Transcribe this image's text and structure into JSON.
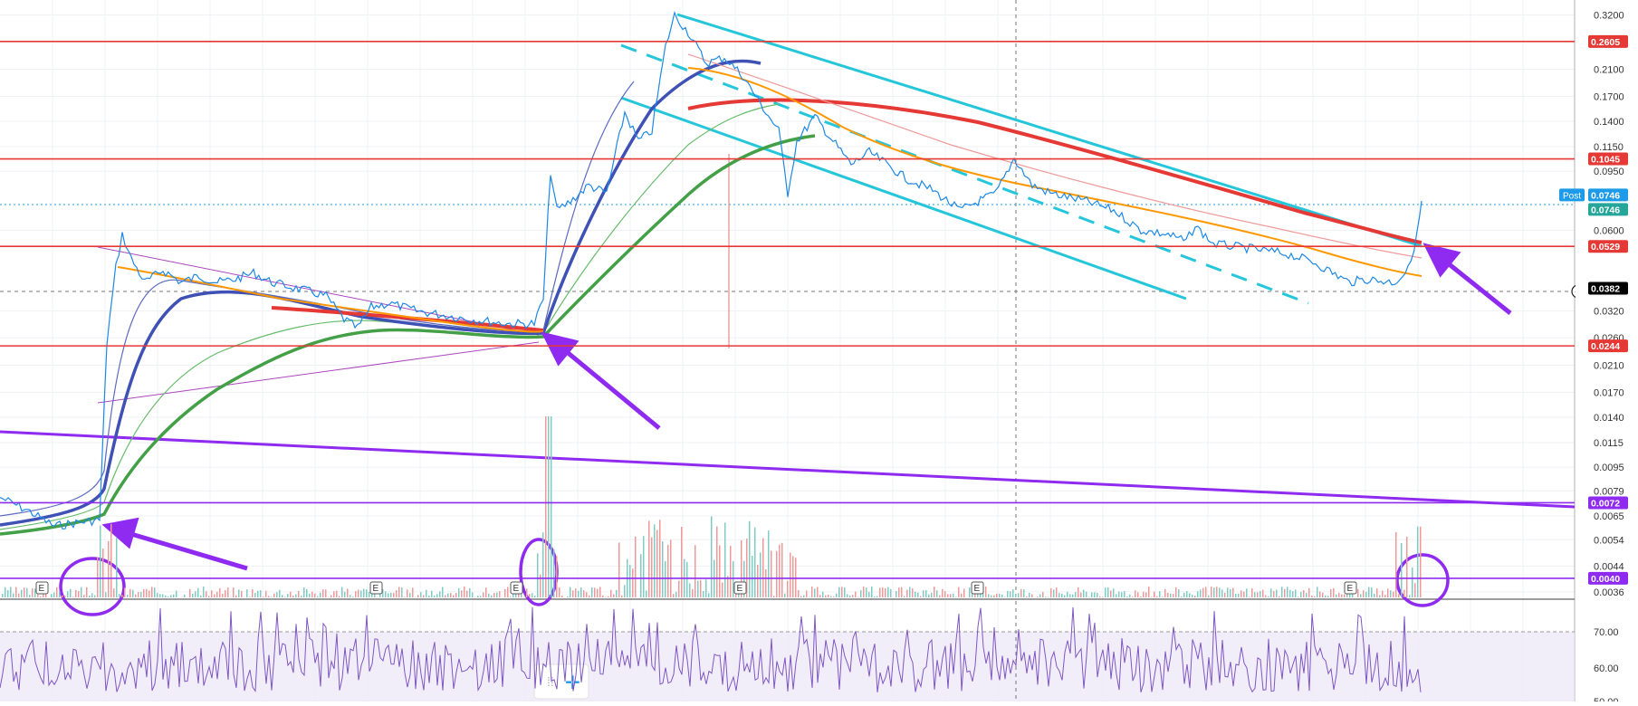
{
  "chart_data": {
    "type": "line",
    "title": "",
    "y_scale": "log",
    "ylim": [
      0.0034,
      0.34
    ],
    "y_ticks": [
      "0.3200",
      "0.2100",
      "0.1700",
      "0.1400",
      "0.1150",
      "0.0950",
      "0.0600",
      "0.0320",
      "0.0260",
      "0.0210",
      "0.0170",
      "0.0140",
      "0.0115",
      "0.0095",
      "0.0079",
      "0.0065",
      "0.0054",
      "0.0044",
      "0.0036"
    ],
    "horizontal_levels": [
      {
        "label": "0.2605",
        "value": 0.2605,
        "color": "#e53935"
      },
      {
        "label": "0.1045",
        "value": 0.1045,
        "color": "#e53935"
      },
      {
        "label": "0.0529",
        "value": 0.0529,
        "color": "#e53935"
      },
      {
        "label": "0.0244",
        "value": 0.0244,
        "color": "#e53935"
      },
      {
        "label": "0.0072",
        "value": 0.0072,
        "color": "#8f2bf0"
      },
      {
        "label": "0.0040",
        "value": 0.004,
        "color": "#8f2bf0"
      }
    ],
    "price_badges": [
      {
        "label": "Post",
        "value": "0.0746",
        "color": "#1e9be8"
      },
      {
        "label": "",
        "value": "0.0746",
        "color": "#26a69a"
      },
      {
        "label": "",
        "value": "0.0382",
        "color": "#000000"
      }
    ],
    "rsi_ticks": [
      "70.00",
      "60.00",
      "50.00"
    ],
    "earnings_markers": [
      "E",
      "E",
      "E",
      "E",
      "E",
      "E"
    ],
    "price_path": [
      [
        0,
        0.0075
      ],
      [
        30,
        0.0068
      ],
      [
        60,
        0.006
      ],
      [
        90,
        0.0062
      ],
      [
        110,
        0.0063
      ],
      [
        118,
        0.025
      ],
      [
        128,
        0.045
      ],
      [
        135,
        0.058
      ],
      [
        145,
        0.048
      ],
      [
        160,
        0.04
      ],
      [
        180,
        0.044
      ],
      [
        200,
        0.04
      ],
      [
        220,
        0.042
      ],
      [
        240,
        0.04
      ],
      [
        260,
        0.041
      ],
      [
        280,
        0.043
      ],
      [
        300,
        0.04
      ],
      [
        330,
        0.038
      ],
      [
        360,
        0.036
      ],
      [
        380,
        0.03
      ],
      [
        395,
        0.028
      ],
      [
        410,
        0.033
      ],
      [
        430,
        0.034
      ],
      [
        460,
        0.032
      ],
      [
        490,
        0.031
      ],
      [
        520,
        0.03
      ],
      [
        560,
        0.029
      ],
      [
        590,
        0.029
      ],
      [
        600,
        0.035
      ],
      [
        608,
        0.095
      ],
      [
        615,
        0.07
      ],
      [
        630,
        0.075
      ],
      [
        650,
        0.085
      ],
      [
        670,
        0.08
      ],
      [
        690,
        0.15
      ],
      [
        705,
        0.12
      ],
      [
        720,
        0.13
      ],
      [
        735,
        0.25
      ],
      [
        745,
        0.32
      ],
      [
        760,
        0.28
      ],
      [
        780,
        0.22
      ],
      [
        800,
        0.23
      ],
      [
        820,
        0.2
      ],
      [
        840,
        0.16
      ],
      [
        860,
        0.13
      ],
      [
        870,
        0.08
      ],
      [
        880,
        0.12
      ],
      [
        900,
        0.145
      ],
      [
        920,
        0.12
      ],
      [
        940,
        0.1
      ],
      [
        960,
        0.11
      ],
      [
        980,
        0.1
      ],
      [
        1000,
        0.09
      ],
      [
        1030,
        0.082
      ],
      [
        1060,
        0.07
      ],
      [
        1080,
        0.075
      ],
      [
        1100,
        0.08
      ],
      [
        1120,
        0.105
      ],
      [
        1140,
        0.085
      ],
      [
        1160,
        0.08
      ],
      [
        1200,
        0.075
      ],
      [
        1230,
        0.07
      ],
      [
        1260,
        0.06
      ],
      [
        1290,
        0.058
      ],
      [
        1310,
        0.055
      ],
      [
        1320,
        0.062
      ],
      [
        1340,
        0.054
      ],
      [
        1380,
        0.052
      ],
      [
        1420,
        0.05
      ],
      [
        1450,
        0.047
      ],
      [
        1490,
        0.04
      ],
      [
        1510,
        0.041
      ],
      [
        1540,
        0.04
      ],
      [
        1555,
        0.044
      ],
      [
        1565,
        0.058
      ],
      [
        1570,
        0.075
      ]
    ]
  }
}
